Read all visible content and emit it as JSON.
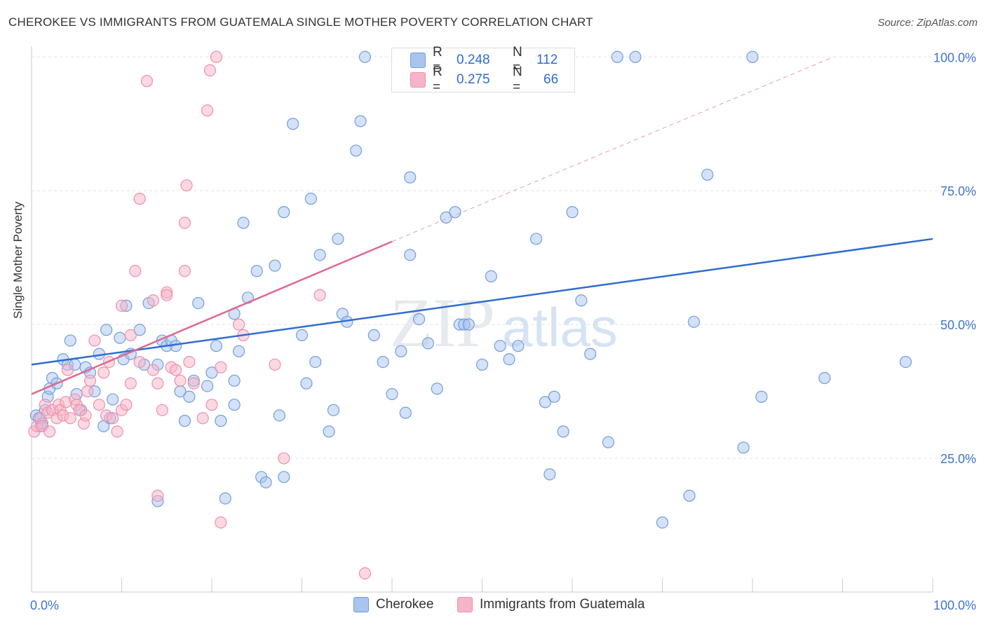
{
  "title": "CHEROKEE VS IMMIGRANTS FROM GUATEMALA SINGLE MOTHER POVERTY CORRELATION CHART",
  "source": "Source: ZipAtlas.com",
  "watermark_zip": "ZIP",
  "watermark_atlas": "atlas",
  "legend": {
    "r_label": "R =",
    "n_label": "N =",
    "rows": [
      {
        "r": "0.248",
        "n": "112",
        "color": "#a9c4ee"
      },
      {
        "r": "0.275",
        "n": "66",
        "color": "#f6b4c8"
      }
    ]
  },
  "bottom_legend": [
    {
      "label": "Cherokee",
      "color": "#a9c4ee"
    },
    {
      "label": "Immigrants from Guatemala",
      "color": "#f6b4c8"
    }
  ],
  "chart_data": {
    "type": "scatter",
    "title": "CHEROKEE VS IMMIGRANTS FROM GUATEMALA SINGLE MOTHER POVERTY CORRELATION CHART",
    "xlabel": "",
    "ylabel": "Single Mother Poverty",
    "xlim": [
      0,
      100
    ],
    "ylim": [
      0,
      102
    ],
    "x_tick_labels": [
      "0.0%",
      "100.0%"
    ],
    "y_tick_labels": [
      "25.0%",
      "50.0%",
      "75.0%",
      "100.0%"
    ],
    "y_ticks": [
      25,
      50,
      75,
      100
    ],
    "grid": true,
    "legend_position": "top-center",
    "series": [
      {
        "name": "Cherokee",
        "color": "#6f9fe0",
        "fill": "#a9c4ee",
        "trend": {
          "x0": 0,
          "y0": 42.5,
          "x1": 100,
          "y1": 66.0,
          "color": "#2f6dd0"
        },
        "points": [
          [
            0.5,
            33
          ],
          [
            0.8,
            32.5
          ],
          [
            1,
            31
          ],
          [
            1.2,
            31.5
          ],
          [
            1.5,
            34
          ],
          [
            1.8,
            36.5
          ],
          [
            2,
            38
          ],
          [
            2.3,
            40
          ],
          [
            2.8,
            39
          ],
          [
            3.5,
            43.5
          ],
          [
            4,
            42.5
          ],
          [
            4.3,
            47
          ],
          [
            4.8,
            42.5
          ],
          [
            5,
            37
          ],
          [
            5.5,
            34
          ],
          [
            6,
            42
          ],
          [
            6.5,
            41
          ],
          [
            7,
            37.5
          ],
          [
            7.5,
            44.5
          ],
          [
            8,
            31
          ],
          [
            8.3,
            49
          ],
          [
            8.7,
            32.5
          ],
          [
            9,
            36
          ],
          [
            9.8,
            47.5
          ],
          [
            10.2,
            43.5
          ],
          [
            10.5,
            53.5
          ],
          [
            11,
            44.5
          ],
          [
            12,
            49
          ],
          [
            12.5,
            42.5
          ],
          [
            13,
            54
          ],
          [
            14,
            42.5
          ],
          [
            14,
            17
          ],
          [
            14.5,
            47
          ],
          [
            15,
            46
          ],
          [
            15.5,
            47
          ],
          [
            16,
            46
          ],
          [
            16.5,
            37.5
          ],
          [
            17,
            32
          ],
          [
            17.5,
            36.5
          ],
          [
            18,
            39.5
          ],
          [
            18.5,
            54
          ],
          [
            19.5,
            38.5
          ],
          [
            20,
            41
          ],
          [
            20.5,
            46
          ],
          [
            21,
            32
          ],
          [
            21.5,
            17.5
          ],
          [
            22.5,
            39.5
          ],
          [
            22.5,
            52
          ],
          [
            23,
            45
          ],
          [
            22.5,
            35
          ],
          [
            23.5,
            69
          ],
          [
            24,
            55
          ],
          [
            25,
            60
          ],
          [
            25.5,
            21.5
          ],
          [
            26,
            20.5
          ],
          [
            27,
            61
          ],
          [
            27.5,
            33
          ],
          [
            28,
            71
          ],
          [
            28,
            21.5
          ],
          [
            29,
            87.5
          ],
          [
            30,
            48
          ],
          [
            30.5,
            39
          ],
          [
            31,
            73.5
          ],
          [
            31.5,
            43
          ],
          [
            32,
            63
          ],
          [
            33,
            30
          ],
          [
            33.5,
            34
          ],
          [
            34,
            66
          ],
          [
            34.5,
            52
          ],
          [
            35,
            50.5
          ],
          [
            36,
            82.5
          ],
          [
            36.5,
            88
          ],
          [
            37,
            100
          ],
          [
            38,
            48
          ],
          [
            39,
            43
          ],
          [
            40,
            37
          ],
          [
            41,
            45
          ],
          [
            41.5,
            33.5
          ],
          [
            42,
            77.5
          ],
          [
            42,
            63
          ],
          [
            43,
            51
          ],
          [
            44,
            46.5
          ],
          [
            45,
            38
          ],
          [
            46,
            70
          ],
          [
            47,
            71
          ],
          [
            47.5,
            50
          ],
          [
            48,
            50
          ],
          [
            48.5,
            50
          ],
          [
            50,
            42.5
          ],
          [
            51,
            59
          ],
          [
            52,
            46
          ],
          [
            53,
            43.5
          ],
          [
            54,
            46
          ],
          [
            56,
            66
          ],
          [
            57,
            35.5
          ],
          [
            57.5,
            22
          ],
          [
            58,
            36.5
          ],
          [
            59,
            30
          ],
          [
            60,
            71
          ],
          [
            61,
            54.5
          ],
          [
            62,
            44.5
          ],
          [
            64,
            28
          ],
          [
            65,
            100
          ],
          [
            67,
            100
          ],
          [
            70,
            13
          ],
          [
            73,
            18
          ],
          [
            73.5,
            50.5
          ],
          [
            75,
            78
          ],
          [
            79,
            27
          ],
          [
            80,
            100
          ],
          [
            81,
            36.5
          ],
          [
            88,
            40
          ],
          [
            97,
            43
          ]
        ]
      },
      {
        "name": "Immigrants from Guatemala",
        "color": "#ef8fab",
        "fill": "#f6b4c8",
        "trend": {
          "x0": 0,
          "y0": 37,
          "x1": 40,
          "y1": 65.5,
          "color": "#e0688e"
        },
        "trend_dashed": {
          "x0": 40,
          "y0": 65.5,
          "x1": 89,
          "y1": 100,
          "color": "#e89ab3"
        },
        "points": [
          [
            0.3,
            30
          ],
          [
            0.6,
            31
          ],
          [
            1,
            32.5
          ],
          [
            1.2,
            31
          ],
          [
            1.5,
            35
          ],
          [
            1.8,
            33.5
          ],
          [
            2,
            30
          ],
          [
            2.3,
            34
          ],
          [
            2.8,
            32.5
          ],
          [
            3,
            35
          ],
          [
            3.2,
            34
          ],
          [
            3.5,
            33
          ],
          [
            3.8,
            35.5
          ],
          [
            4,
            41.5
          ],
          [
            4.3,
            32.5
          ],
          [
            4.8,
            36
          ],
          [
            5,
            35
          ],
          [
            5.3,
            34
          ],
          [
            5.8,
            31.5
          ],
          [
            6,
            33
          ],
          [
            6.2,
            37.5
          ],
          [
            6.5,
            39.5
          ],
          [
            7,
            47
          ],
          [
            7.5,
            35
          ],
          [
            8,
            41
          ],
          [
            8.3,
            33
          ],
          [
            8.6,
            43
          ],
          [
            9,
            32.5
          ],
          [
            9.5,
            30
          ],
          [
            10,
            34
          ],
          [
            10,
            53.5
          ],
          [
            10.5,
            35
          ],
          [
            11,
            48
          ],
          [
            11,
            39
          ],
          [
            11.5,
            60
          ],
          [
            12,
            73.5
          ],
          [
            12,
            43
          ],
          [
            12.8,
            95.5
          ],
          [
            13.5,
            54.5
          ],
          [
            13.5,
            41.5
          ],
          [
            14,
            18
          ],
          [
            14,
            39
          ],
          [
            14.5,
            34
          ],
          [
            15,
            56
          ],
          [
            15,
            55.5
          ],
          [
            15.5,
            42
          ],
          [
            16,
            41.5
          ],
          [
            16.5,
            39.5
          ],
          [
            17,
            69
          ],
          [
            17,
            60
          ],
          [
            17.2,
            76
          ],
          [
            17.5,
            43
          ],
          [
            18,
            39
          ],
          [
            19,
            32.5
          ],
          [
            19.5,
            90
          ],
          [
            19.8,
            97.5
          ],
          [
            20,
            35
          ],
          [
            20.5,
            100
          ],
          [
            21,
            42
          ],
          [
            21,
            13
          ],
          [
            23,
            50
          ],
          [
            23.5,
            48
          ],
          [
            27,
            42.5
          ],
          [
            28,
            25
          ],
          [
            32,
            55.5
          ],
          [
            37,
            3.5
          ]
        ]
      }
    ]
  }
}
